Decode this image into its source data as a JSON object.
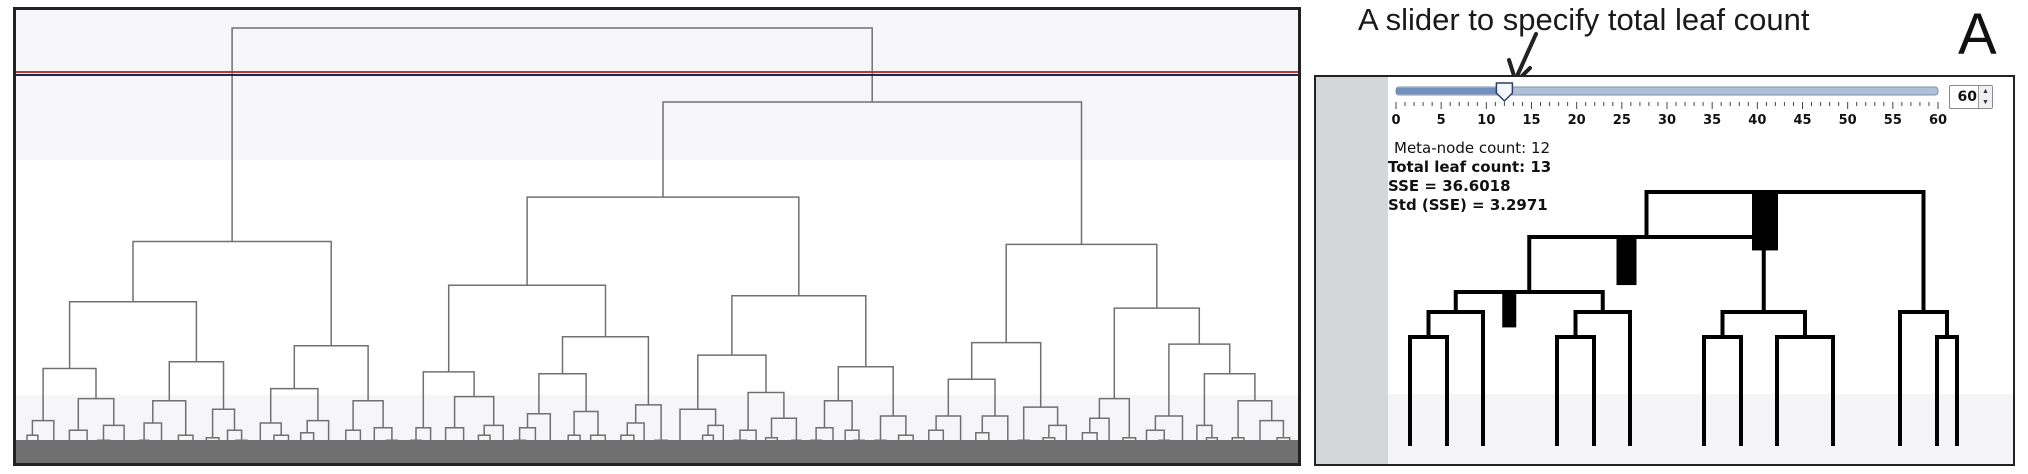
{
  "annotation": {
    "callout": "A slider to specify total leaf count",
    "panel_letter": "A"
  },
  "slider": {
    "min": 0,
    "max": 60,
    "value": 12,
    "tick_labels": [
      "0",
      "5",
      "10",
      "15",
      "20",
      "25",
      "30",
      "35",
      "40",
      "45",
      "50",
      "55",
      "60"
    ],
    "spinner_value": "60"
  },
  "stats": {
    "meta_node_count": "Meta-node count: 12",
    "total_leaf_count": "Total leaf count: 13",
    "sse": "SSE = 36.6018",
    "std_sse": "Std (SSE) = 3.2971"
  },
  "colors": {
    "dendrogram_line": "#707070",
    "cut_line_red": "#c0392b",
    "cut_line_navy": "#1f2a5a",
    "meta_tree": "#000000",
    "slider_track": "#aebfd6",
    "slider_fill": "#6f8fbf"
  }
}
